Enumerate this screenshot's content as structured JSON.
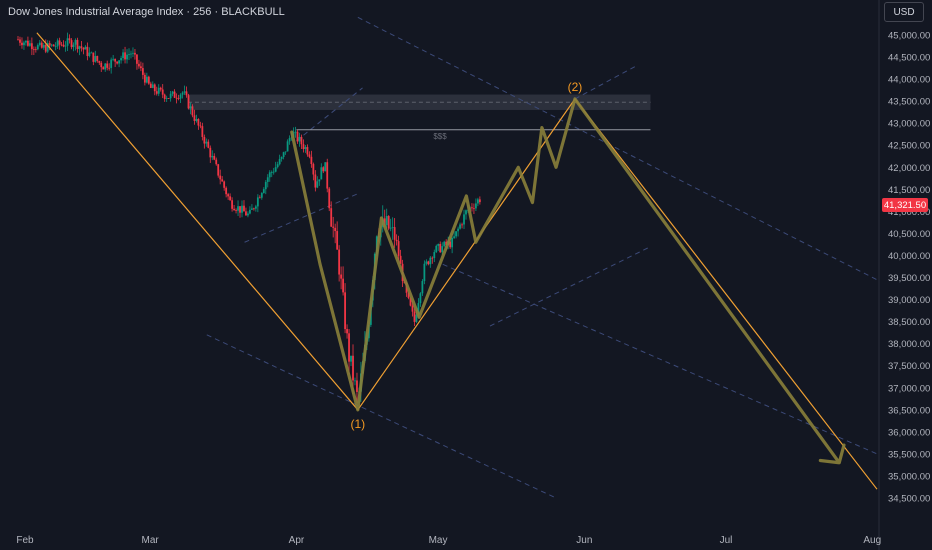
{
  "header": {
    "title": "Dow Jones Industrial Average Index · 256 · BLACKBULL",
    "currency_button": "USD"
  },
  "price_axis": {
    "current_price_label": "41,321.50"
  },
  "annotations": {
    "wave_1": "(1)",
    "wave_2": "(2)",
    "liquidity_level": "$$$"
  },
  "colors": {
    "background": "#131722",
    "up_candle": "#089981",
    "down_candle": "#f23645",
    "impulse_line": "#f0a033",
    "projection_path": "#8a7f3a",
    "wave_label": "#f59a23",
    "channel_line": "#3c4a78",
    "resistance_zone": "#363a45"
  },
  "chart_data": {
    "type": "candlestick",
    "title": "Dow Jones Industrial Average Index · 256 · BLACKBULL",
    "x_tick_labels": [
      "Feb",
      "Mar",
      "Apr",
      "May",
      "Jun",
      "Jul",
      "Aug"
    ],
    "y_ticks": [
      45000,
      44500,
      44000,
      43500,
      43000,
      42500,
      42000,
      41500,
      41000,
      40500,
      40000,
      39500,
      39000,
      38500,
      38000,
      37500,
      37000,
      36500,
      36000,
      35500,
      35000,
      34500
    ],
    "y_tick_labels": [
      "45,000.00",
      "44,500.00",
      "44,000.00",
      "43,500.00",
      "43,000.00",
      "42,500.00",
      "42,000.00",
      "41,500.00",
      "41,000.00",
      "40,500.00",
      "40,000.00",
      "39,500.00",
      "39,000.00",
      "38,500.00",
      "38,000.00",
      "37,500.00",
      "37,000.00",
      "36,500.00",
      "36,000.00",
      "35,500.00",
      "35,000.00",
      "34,500.00"
    ],
    "ylim": [
      34450,
      45350
    ],
    "x_range_days": [
      0,
      182
    ],
    "current_price": 41321.5,
    "price_path_keypoints": [
      {
        "day": 0,
        "price": 44900
      },
      {
        "day": 5,
        "price": 44700
      },
      {
        "day": 12,
        "price": 44850
      },
      {
        "day": 18,
        "price": 44300
      },
      {
        "day": 24,
        "price": 44600
      },
      {
        "day": 28,
        "price": 43800
      },
      {
        "day": 32,
        "price": 43600
      },
      {
        "day": 35,
        "price": 43700
      },
      {
        "day": 40,
        "price": 42500
      },
      {
        "day": 45,
        "price": 41200
      },
      {
        "day": 49,
        "price": 40900
      },
      {
        "day": 53,
        "price": 41800
      },
      {
        "day": 56,
        "price": 42200
      },
      {
        "day": 58,
        "price": 42800
      },
      {
        "day": 62,
        "price": 42300
      },
      {
        "day": 63,
        "price": 41600
      },
      {
        "day": 65,
        "price": 42100
      },
      {
        "day": 66,
        "price": 41100
      },
      {
        "day": 68,
        "price": 39800
      },
      {
        "day": 70,
        "price": 37800
      },
      {
        "day": 72,
        "price": 36700
      },
      {
        "day": 74,
        "price": 38200
      },
      {
        "day": 76,
        "price": 40600
      },
      {
        "day": 78,
        "price": 40700
      },
      {
        "day": 80,
        "price": 40400
      },
      {
        "day": 82,
        "price": 39200
      },
      {
        "day": 84,
        "price": 38500
      },
      {
        "day": 86,
        "price": 39700
      },
      {
        "day": 88,
        "price": 40100
      },
      {
        "day": 90,
        "price": 40200
      },
      {
        "day": 92,
        "price": 40300
      },
      {
        "day": 95,
        "price": 41000
      },
      {
        "day": 98,
        "price": 41300
      }
    ],
    "impulse_lines": [
      [
        {
          "day": 4,
          "price": 45050
        },
        {
          "day": 72,
          "price": 36500
        }
      ],
      [
        {
          "day": 72,
          "price": 36500
        },
        {
          "day": 118,
          "price": 43550
        }
      ],
      [
        {
          "day": 118,
          "price": 43550
        },
        {
          "day": 182,
          "price": 34700
        }
      ]
    ],
    "projected_path": [
      {
        "day": 58,
        "price": 42800
      },
      {
        "day": 64,
        "price": 39800
      },
      {
        "day": 72,
        "price": 36500
      },
      {
        "day": 77,
        "price": 40850
      },
      {
        "day": 85,
        "price": 38600
      },
      {
        "day": 95,
        "price": 41350
      },
      {
        "day": 97,
        "price": 40300
      },
      {
        "day": 106,
        "price": 42000
      },
      {
        "day": 109,
        "price": 41200
      },
      {
        "day": 111,
        "price": 42900
      },
      {
        "day": 114,
        "price": 42000
      },
      {
        "day": 118,
        "price": 43550
      },
      {
        "day": 174,
        "price": 35300
      },
      {
        "day": 175,
        "price": 35700
      },
      {
        "day": 174,
        "price": 35300
      },
      {
        "day": 170,
        "price": 35350
      }
    ],
    "horizontal_level": {
      "price": 42850,
      "from_day": 59,
      "to_day": 134,
      "label": "$$$"
    },
    "resistance_zone": {
      "price_top": 43650,
      "price_bottom": 43300,
      "from_day": 36,
      "to_day": 134
    },
    "wave_labels": [
      {
        "text": "(1)",
        "day": 72,
        "price": 36500,
        "position": "below"
      },
      {
        "text": "(2)",
        "day": 118,
        "price": 43550,
        "position": "above"
      }
    ],
    "channel_lines": [
      [
        {
          "day": 72,
          "price": 45400
        },
        {
          "day": 182,
          "price": 39450
        }
      ],
      [
        {
          "day": 40,
          "price": 38200
        },
        {
          "day": 114,
          "price": 34500
        }
      ],
      [
        {
          "day": 90,
          "price": 39800
        },
        {
          "day": 182,
          "price": 35500
        }
      ],
      [
        {
          "day": 48,
          "price": 40300
        },
        {
          "day": 72,
          "price": 41400
        }
      ],
      [
        {
          "day": 59,
          "price": 42600
        },
        {
          "day": 73,
          "price": 43800
        }
      ],
      [
        {
          "day": 100,
          "price": 38400
        },
        {
          "day": 134,
          "price": 40200
        }
      ],
      [
        {
          "day": 118,
          "price": 43550
        },
        {
          "day": 131,
          "price": 44300
        }
      ]
    ],
    "grid": false,
    "legend": "none"
  }
}
